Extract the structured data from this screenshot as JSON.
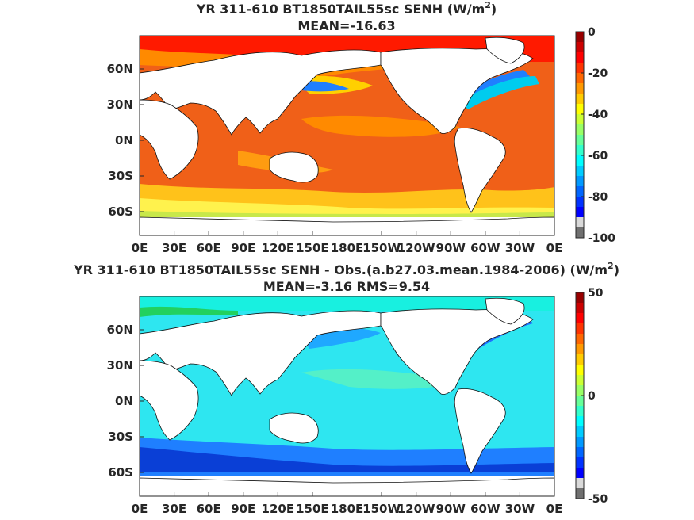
{
  "chart_data": [
    {
      "type": "heatmap",
      "title_prefix": "YR 311-610 BT1850TAIL55sc  SENH (W/m",
      "title_sup": "2",
      "title_suffix": ")",
      "subtitle": "MEAN=-16.63",
      "x_ticks": [
        "0E",
        "30E",
        "60E",
        "90E",
        "120E",
        "150E",
        "180E",
        "150W",
        "120W",
        "90W",
        "60W",
        "30W",
        "0E"
      ],
      "y_ticks": [
        "60N",
        "30N",
        "0N",
        "30S",
        "60S"
      ],
      "y_values": [
        60,
        30,
        0,
        -30,
        -60
      ],
      "lat_range": [
        -80,
        88
      ],
      "colorbar": {
        "min": -100,
        "max": 0,
        "ticks": [
          "0",
          "-20",
          "-40",
          "-60",
          "-80",
          "-100"
        ]
      },
      "colormap": "jet"
    },
    {
      "type": "heatmap",
      "title_prefix": "YR 311-610 BT1850TAIL55sc SENH - Obs.(a.b27.03.mean.1984-2006) (W/m",
      "title_sup": "2",
      "title_suffix": ")",
      "subtitle": "MEAN=-3.16 RMS=9.54",
      "x_ticks": [
        "0E",
        "30E",
        "60E",
        "90E",
        "120E",
        "150E",
        "180E",
        "150W",
        "120W",
        "90W",
        "60W",
        "30W",
        "0E"
      ],
      "y_ticks": [
        "60N",
        "30N",
        "0N",
        "30S",
        "60S"
      ],
      "y_values": [
        60,
        30,
        0,
        -30,
        -60
      ],
      "lat_range": [
        -80,
        88
      ],
      "colorbar": {
        "min": -50,
        "max": 50,
        "ticks": [
          "50",
          "0",
          "-50"
        ]
      },
      "colormap": "jet"
    }
  ]
}
